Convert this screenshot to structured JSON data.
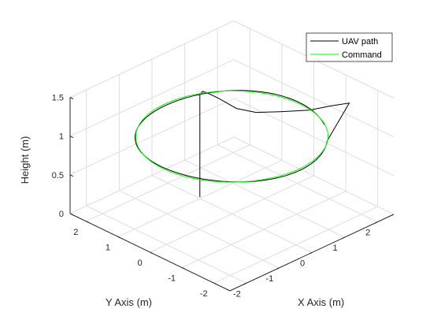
{
  "chart_data": {
    "type": "line3d",
    "title": "",
    "xlabel": "X Axis (m)",
    "ylabel": "Y Axis (m)",
    "zlabel": "Height (m)",
    "xlim": [
      -2.5,
      2.5
    ],
    "ylim": [
      -2.5,
      2.5
    ],
    "zlim": [
      0,
      1.5
    ],
    "xticks": [
      "-2",
      "-1",
      "0",
      "1",
      "2"
    ],
    "yticks": [
      "-2",
      "-1",
      "0",
      "1",
      "2"
    ],
    "zticks": [
      "0",
      "0.5",
      "1",
      "1.5"
    ],
    "grid": true,
    "legend_position": "top-right",
    "series": [
      {
        "name": "UAV path",
        "color": "#000000",
        "points": [
          [
            -0.95,
            0.03,
            0.4
          ],
          [
            -0.95,
            0.03,
            1.0
          ],
          [
            -0.95,
            0.03,
            1.72
          ],
          [
            -0.9,
            0.0,
            1.76
          ],
          [
            -0.8,
            -0.05,
            1.73
          ],
          [
            -0.6,
            -0.2,
            1.65
          ],
          [
            -0.4,
            -0.55,
            1.55
          ],
          [
            -0.1,
            -0.85,
            1.5
          ],
          [
            0.3,
            -1.2,
            1.5
          ],
          [
            0.8,
            -1.6,
            1.5
          ],
          [
            1.3,
            -1.8,
            1.5
          ],
          [
            1.65,
            -1.98,
            1.5
          ]
        ]
      },
      {
        "name": "Command",
        "color": "#00ff00",
        "circle": {
          "cx": 0,
          "cy": 0,
          "r": 2.1,
          "z": 1.0
        }
      }
    ]
  }
}
